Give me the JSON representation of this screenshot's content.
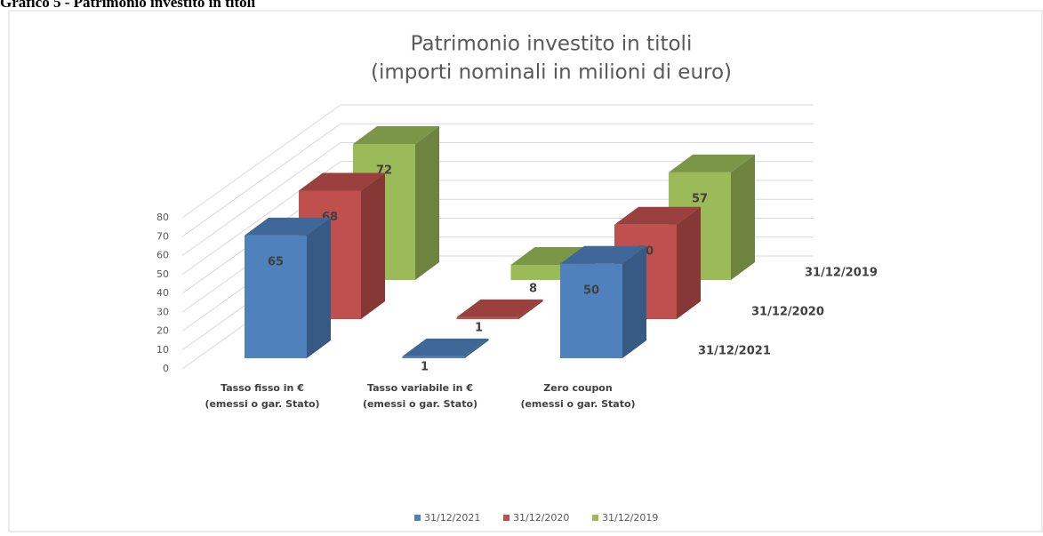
{
  "header": "Grafico 5 - Patrimonio investito in titoli",
  "chart_data": {
    "type": "bar3d",
    "title": "Patrimonio investito in titoli",
    "subtitle": "(importi nominali in milioni di euro)",
    "categories": [
      [
        "Tasso fisso in €",
        "(emessi o gar. Stato)"
      ],
      [
        "Tasso variabile in €",
        "(emessi o gar. Stato)"
      ],
      [
        "Zero coupon",
        "(emessi o gar. Stato)"
      ]
    ],
    "series": [
      {
        "name": "31/12/2021",
        "color": "#4f81bd",
        "values": [
          65,
          1,
          50
        ]
      },
      {
        "name": "31/12/2020",
        "color": "#c0504d",
        "values": [
          68,
          1,
          50
        ]
      },
      {
        "name": "31/12/2019",
        "color": "#9bbb59",
        "values": [
          72,
          8,
          57
        ]
      }
    ],
    "ylim": [
      0,
      80
    ],
    "yticks": [
      0,
      10,
      20,
      30,
      40,
      50,
      60,
      70,
      80
    ],
    "grid": true,
    "legend": "bottom"
  }
}
